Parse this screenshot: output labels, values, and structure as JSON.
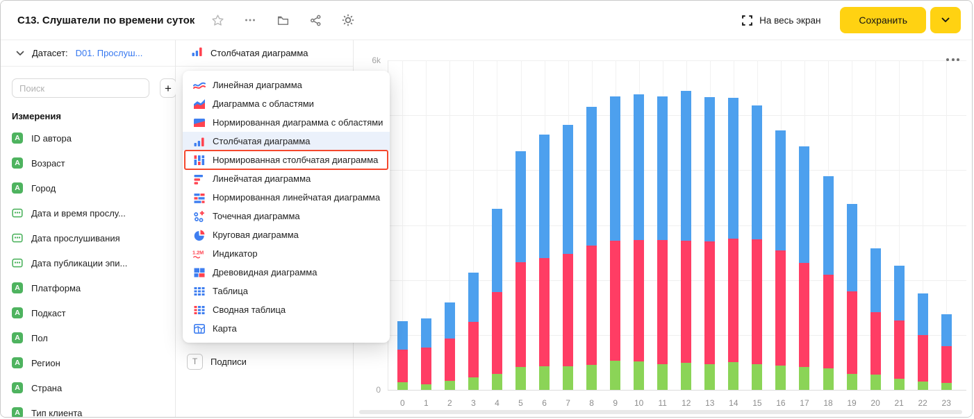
{
  "header": {
    "title": "C13. Слушатели по времени суток",
    "fullscreen_label": "На весь экран",
    "save_label": "Сохранить"
  },
  "colors": {
    "accent_yellow": "#ffd212",
    "link_blue": "#3678f0",
    "icon_blue": "#3e7ef0",
    "icon_red": "#ff4350",
    "field_green": "#4eb35f",
    "selected_row_bg": "#ebf1fb",
    "annotation_red": "#f4482d",
    "bar_green": "#8bd457",
    "bar_red": "#ff3d64",
    "bar_blue": "#4da0ee"
  },
  "sidebar": {
    "dataset_label": "Датасет:",
    "dataset_name": "D01. Прослуш...",
    "search_placeholder": "Поиск",
    "add_button": "+",
    "section_title": "Измерения",
    "fields": [
      {
        "label": "ID автора",
        "type": "string"
      },
      {
        "label": "Возраст",
        "type": "string"
      },
      {
        "label": "Город",
        "type": "string"
      },
      {
        "label": "Дата и время прослу...",
        "type": "date"
      },
      {
        "label": "Дата прослушивания",
        "type": "date"
      },
      {
        "label": "Дата публикации эпи...",
        "type": "date"
      },
      {
        "label": "Платформа",
        "type": "string"
      },
      {
        "label": "Подкаст",
        "type": "string"
      },
      {
        "label": "Пол",
        "type": "string"
      },
      {
        "label": "Регион",
        "type": "string"
      },
      {
        "label": "Страна",
        "type": "string"
      },
      {
        "label": "Тип клиента",
        "type": "string"
      }
    ]
  },
  "vis_panel": {
    "selector_label": "Столбчатая диаграмма",
    "selector_icon": "bar-chart-icon",
    "labels_row": "Подписи",
    "dropdown_items": [
      {
        "label": "Линейная диаграмма",
        "icon": "line-chart-icon",
        "selected": false,
        "annotated": false
      },
      {
        "label": "Диаграмма с областями",
        "icon": "area-chart-icon",
        "selected": false,
        "annotated": false
      },
      {
        "label": "Нормированная диаграмма с областями",
        "icon": "normalized-area-chart-icon",
        "selected": false,
        "annotated": false
      },
      {
        "label": "Столбчатая диаграмма",
        "icon": "bar-chart-icon",
        "selected": true,
        "annotated": false
      },
      {
        "label": "Нормированная столбчатая диаграмма",
        "icon": "normalized-bar-chart-icon",
        "selected": false,
        "annotated": true
      },
      {
        "label": "Линейчатая диаграмма",
        "icon": "horizontal-bar-chart-icon",
        "selected": false,
        "annotated": false
      },
      {
        "label": "Нормированная линейчатая диаграмма",
        "icon": "normalized-horizontal-bar-chart-icon",
        "selected": false,
        "annotated": false
      },
      {
        "label": "Точечная диаграмма",
        "icon": "scatter-chart-icon",
        "selected": false,
        "annotated": false
      },
      {
        "label": "Круговая диаграмма",
        "icon": "pie-chart-icon",
        "selected": false,
        "annotated": false
      },
      {
        "label": "Индикатор",
        "icon": "indicator-icon",
        "selected": false,
        "annotated": false
      },
      {
        "label": "Древовидная диаграмма",
        "icon": "treemap-icon",
        "selected": false,
        "annotated": false
      },
      {
        "label": "Таблица",
        "icon": "table-icon",
        "selected": false,
        "annotated": false
      },
      {
        "label": "Сводная таблица",
        "icon": "pivot-table-icon",
        "selected": false,
        "annotated": false
      },
      {
        "label": "Карта",
        "icon": "map-icon",
        "selected": false,
        "annotated": false
      }
    ]
  },
  "chart_data": {
    "type": "bar",
    "stacked": true,
    "title": "",
    "xlabel": "",
    "ylabel": "",
    "grid": true,
    "legend": "none",
    "ylim": [
      0,
      6000
    ],
    "y_tick_labels": [
      {
        "label": "6k",
        "value": 6000
      },
      {
        "label": "0",
        "value": 0
      }
    ],
    "categories": [
      "0",
      "1",
      "2",
      "3",
      "4",
      "5",
      "6",
      "7",
      "8",
      "9",
      "10",
      "11",
      "12",
      "13",
      "14",
      "15",
      "16",
      "17",
      "18",
      "19",
      "20",
      "21",
      "22",
      "23"
    ],
    "series": [
      {
        "name": "green",
        "color": "#8bd457",
        "values": [
          140,
          105,
          160,
          225,
          295,
          415,
          425,
          435,
          455,
          525,
          520,
          470,
          495,
          470,
          505,
          470,
          445,
          420,
          395,
          290,
          275,
          200,
          150,
          125
        ]
      },
      {
        "name": "red",
        "color": "#ff3d64",
        "values": [
          595,
          660,
          770,
          1015,
          1490,
          1915,
          1980,
          2040,
          2170,
          2190,
          2210,
          2255,
          2225,
          2230,
          2245,
          2270,
          2090,
          1890,
          1700,
          1505,
          1135,
          1060,
          850,
          670
        ]
      },
      {
        "name": "blue",
        "color": "#4da0ee",
        "values": [
          515,
          530,
          660,
          900,
          1515,
          2020,
          2240,
          2350,
          2535,
          2630,
          2655,
          2620,
          2725,
          2635,
          2570,
          2440,
          2195,
          2125,
          1800,
          1590,
          1170,
          1000,
          760,
          585
        ]
      }
    ]
  }
}
